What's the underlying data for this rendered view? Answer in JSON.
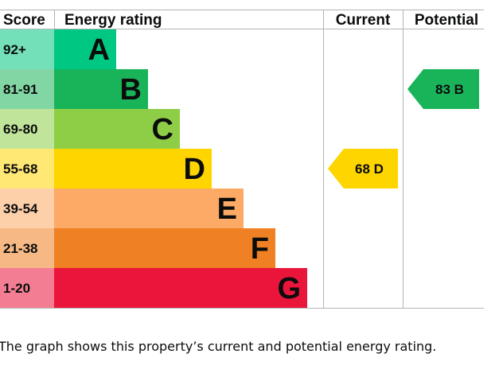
{
  "chart_data": {
    "type": "bar",
    "headers": {
      "score": "Score",
      "rating": "Energy rating",
      "current": "Current",
      "potential": "Potential"
    },
    "bands": [
      {
        "score": "92+",
        "letter": "A",
        "color": "#00c781"
      },
      {
        "score": "81-91",
        "letter": "B",
        "color": "#19b459"
      },
      {
        "score": "69-80",
        "letter": "C",
        "color": "#8dce46"
      },
      {
        "score": "55-68",
        "letter": "D",
        "color": "#ffd500"
      },
      {
        "score": "39-54",
        "letter": "E",
        "color": "#fcaa65"
      },
      {
        "score": "21-38",
        "letter": "F",
        "color": "#ef8023"
      },
      {
        "score": "1-20",
        "letter": "G",
        "color": "#e9153b"
      }
    ],
    "current": {
      "value": 68,
      "letter": "D",
      "label": "68 D",
      "color": "#ffd500"
    },
    "potential": {
      "value": 83,
      "letter": "B",
      "label": "83 B",
      "color": "#19b459"
    }
  },
  "caption": "The graph shows this property’s current and potential energy rating."
}
